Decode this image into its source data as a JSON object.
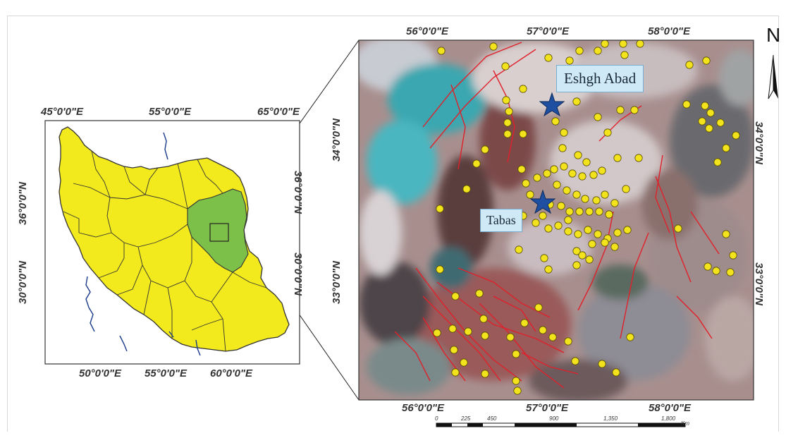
{
  "inset_map": {
    "lon_top": [
      "45°0'0\"E",
      "55°0'0\"E",
      "65°0'0\"E"
    ],
    "lon_bottom": [
      "50°0'0\"E",
      "55°0'0\"E",
      "60°0'0\"E"
    ],
    "lat_left": [
      "36°0'0\"N",
      "30°0'0\"N"
    ],
    "lat_right": [
      "36°0'0\"N",
      "30°0'0\"N"
    ],
    "colors": {
      "country": "#f2ea1c",
      "highlight": "#7cc04a",
      "border": "#333333",
      "rivers": "#1a3a8a"
    }
  },
  "main_map": {
    "lon_top": [
      "56°0'0\"E",
      "57°0'0\"E",
      "58°0'0\"E"
    ],
    "lon_bottom": [
      "56°0'0\"E",
      "57°0'0\"E",
      "58°0'0\"E"
    ],
    "lat_left": [
      "34°0'0\"N",
      "33°0'0\"N"
    ],
    "lat_right": [
      "34°0'0\"N",
      "33°0'0\"N"
    ],
    "places": [
      {
        "name": "Eshgh Abad",
        "symbol": "star"
      },
      {
        "name": "Tabas",
        "symbol": "star"
      }
    ],
    "colors": {
      "points": "#f3e31c",
      "faults": "#e0202a",
      "star": "#1f4fa0"
    }
  },
  "north_arrow": {
    "label": "N"
  },
  "scale_bar": {
    "ticks": [
      "0",
      "225",
      "450",
      "900",
      "1,350",
      "1,800"
    ],
    "unit": "Km"
  }
}
